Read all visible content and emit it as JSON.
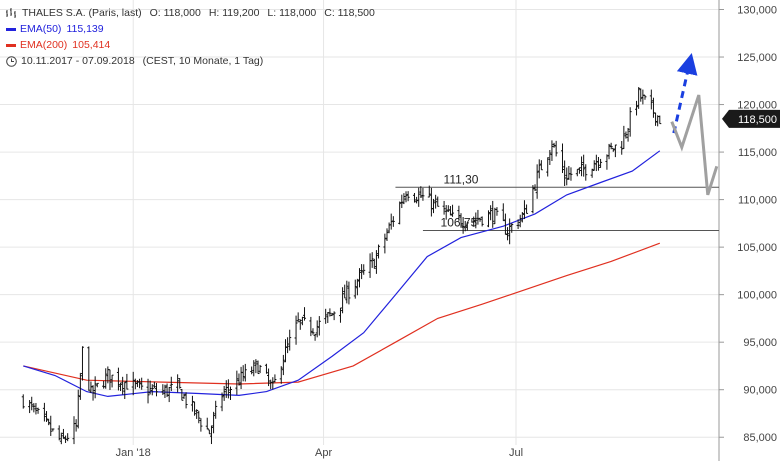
{
  "legend": {
    "title": "THALES S.A. (Paris, last)",
    "ohlc": {
      "open": "O: 118,000",
      "high": "H: 119,200",
      "low": "L: 118,000",
      "close": "C: 118,500"
    },
    "ema50": {
      "label": "EMA(50)",
      "value": "115,139",
      "color": "#2222dd"
    },
    "ema200": {
      "label": "EMA(200)",
      "value": "105,414",
      "color": "#e03020"
    },
    "range": "10.11.2017 - 07.09.2018",
    "range_info": "(CEST, 10 Monate, 1 Tag)",
    "icons": {
      "bars": "ohlc-bars-icon",
      "clock": "clock-icon"
    }
  },
  "chart_data": {
    "type": "ohlc",
    "ylim": [
      82.5,
      131
    ],
    "y_ticks": [
      85,
      90,
      95,
      100,
      105,
      110,
      115,
      120,
      125,
      130
    ],
    "y_tick_labels": [
      "85,000",
      "90,000",
      "95,000",
      "100,000",
      "105,000",
      "110,000",
      "115,000",
      "120,000",
      "125,000",
      "130,000"
    ],
    "x_ticks": [
      {
        "label": "Jan '18",
        "date": "2018-01-01"
      },
      {
        "label": "Apr",
        "date": "2018-04-01"
      },
      {
        "label": "Jul",
        "date": "2018-07-01"
      }
    ],
    "price_path": [
      [
        "2017-11-10",
        89.0
      ],
      [
        "2017-11-20",
        86.5
      ],
      [
        "2017-11-28",
        84.5
      ],
      [
        "2017-12-05",
        86.0
      ],
      [
        "2017-12-08",
        94.0
      ],
      [
        "2017-12-12",
        89.5
      ],
      [
        "2017-12-20",
        91.5
      ],
      [
        "2018-01-05",
        90.0
      ],
      [
        "2018-01-15",
        89.8
      ],
      [
        "2018-01-22",
        90.2
      ],
      [
        "2018-02-01",
        87.0
      ],
      [
        "2018-02-06",
        85.5
      ],
      [
        "2018-02-12",
        89.5
      ],
      [
        "2018-02-20",
        91.0
      ],
      [
        "2018-03-01",
        92.5
      ],
      [
        "2018-03-08",
        90.0
      ],
      [
        "2018-03-12",
        93.0
      ],
      [
        "2018-03-20",
        97.0
      ],
      [
        "2018-03-28",
        96.5
      ],
      [
        "2018-04-05",
        98.0
      ],
      [
        "2018-04-15",
        101.0
      ],
      [
        "2018-04-25",
        103.5
      ],
      [
        "2018-05-02",
        107.0
      ],
      [
        "2018-05-10",
        111.0
      ],
      [
        "2018-05-20",
        110.0
      ],
      [
        "2018-06-01",
        108.0
      ],
      [
        "2018-06-10",
        107.8
      ],
      [
        "2018-06-20",
        108.5
      ],
      [
        "2018-06-27",
        106.75
      ],
      [
        "2018-07-05",
        108.5
      ],
      [
        "2018-07-12",
        113.0
      ],
      [
        "2018-07-18",
        116.0
      ],
      [
        "2018-07-24",
        112.5
      ],
      [
        "2018-08-01",
        113.0
      ],
      [
        "2018-08-10",
        114.5
      ],
      [
        "2018-08-20",
        116.0
      ],
      [
        "2018-08-28",
        121.0
      ],
      [
        "2018-09-03",
        119.5
      ],
      [
        "2018-09-07",
        118.5
      ]
    ],
    "ema50": [
      [
        "2017-11-10",
        92.5
      ],
      [
        "2017-11-25",
        91.5
      ],
      [
        "2017-12-10",
        89.8
      ],
      [
        "2017-12-20",
        89.3
      ],
      [
        "2018-01-10",
        89.8
      ],
      [
        "2018-02-01",
        89.6
      ],
      [
        "2018-02-20",
        89.4
      ],
      [
        "2018-03-05",
        89.8
      ],
      [
        "2018-03-20",
        91.0
      ],
      [
        "2018-04-05",
        93.5
      ],
      [
        "2018-04-20",
        96.0
      ],
      [
        "2018-05-05",
        100.0
      ],
      [
        "2018-05-20",
        104.0
      ],
      [
        "2018-06-05",
        106.0
      ],
      [
        "2018-06-25",
        107.2
      ],
      [
        "2018-07-10",
        108.5
      ],
      [
        "2018-07-25",
        110.5
      ],
      [
        "2018-08-10",
        111.8
      ],
      [
        "2018-08-25",
        113.0
      ],
      [
        "2018-09-07",
        115.139
      ]
    ],
    "ema200": [
      [
        "2017-11-10",
        92.5
      ],
      [
        "2017-12-10",
        91.0
      ],
      [
        "2018-01-15",
        90.8
      ],
      [
        "2018-02-20",
        90.6
      ],
      [
        "2018-03-20",
        90.8
      ],
      [
        "2018-04-15",
        92.5
      ],
      [
        "2018-05-05",
        95.0
      ],
      [
        "2018-05-25",
        97.5
      ],
      [
        "2018-06-15",
        99.0
      ],
      [
        "2018-07-05",
        100.5
      ],
      [
        "2018-07-25",
        102.0
      ],
      [
        "2018-08-15",
        103.5
      ],
      [
        "2018-09-07",
        105.414
      ]
    ],
    "horizontal_levels": [
      {
        "value": 111.3,
        "label": "111,30"
      },
      {
        "value": 106.75,
        "label": "106,75"
      }
    ],
    "last_price": {
      "value": 118.5,
      "label": "118,500"
    },
    "projection": {
      "blue_dashed_arrow": [
        [
          117.0,
          124.5
        ]
      ],
      "gray_zigzag": [
        115.5,
        121.0,
        110.5,
        113.5
      ]
    },
    "colors": {
      "price": "#111111",
      "ema50": "#2222dd",
      "ema200": "#e03020",
      "grid": "#e6e6e6",
      "levels": "#555555",
      "arrow": "#1a3fe0",
      "zigzag": "#a0a0a0"
    }
  }
}
